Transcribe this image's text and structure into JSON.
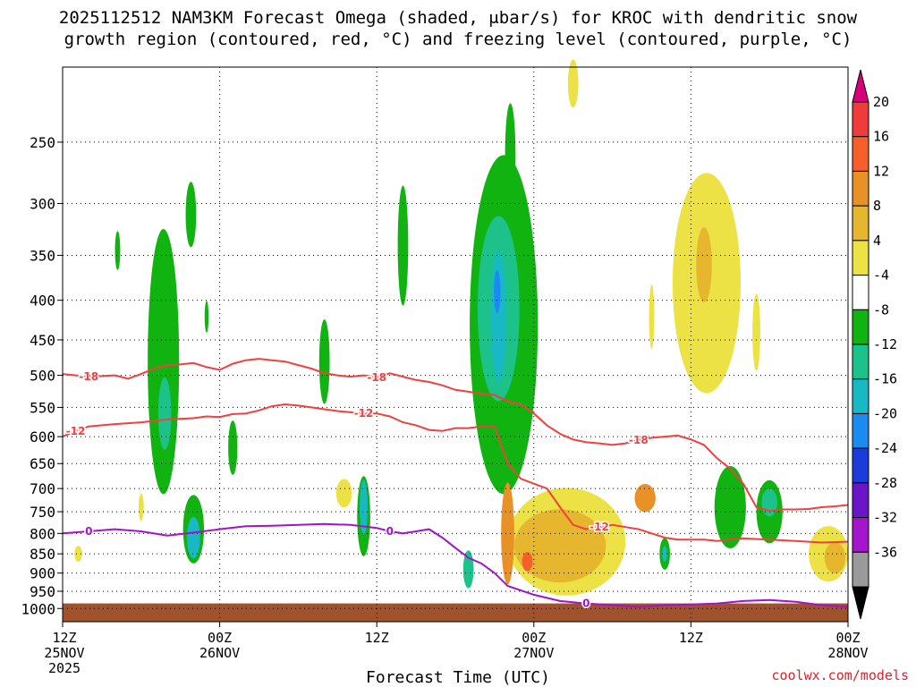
{
  "header": {
    "title_line1": "2025112512 NAM3KM Forecast Omega (shaded, μbar/s) for KROC with dendritic snow",
    "title_line2": "growth region (contoured, red, °C) and freezing level (contoured, purple, °C)"
  },
  "footer": {
    "x_axis_title": "Forecast Time (UTC)",
    "credit": "coolwx.com/models"
  },
  "chart_data": {
    "type": "heatmap",
    "title": "2025112512 NAM3KM Forecast Omega (shaded, μbar/s) for KROC with dendritic snow growth region (contoured, red, °C) and freezing level (contoured, purple, °C)",
    "xlabel": "Forecast Time (UTC)",
    "ylabel": "",
    "x_ticks": [
      {
        "hour": 0,
        "lines": [
          "12Z",
          "25NOV",
          "2025"
        ]
      },
      {
        "hour": 12,
        "lines": [
          "00Z",
          "26NOV"
        ]
      },
      {
        "hour": 24,
        "lines": [
          "12Z"
        ]
      },
      {
        "hour": 36,
        "lines": [
          "00Z",
          "27NOV"
        ]
      },
      {
        "hour": 48,
        "lines": [
          "12Z"
        ]
      },
      {
        "hour": 60,
        "lines": [
          "00Z",
          "28NOV"
        ]
      }
    ],
    "xlim": [
      0,
      60
    ],
    "y_ticks": [
      250,
      300,
      350,
      400,
      450,
      500,
      550,
      600,
      650,
      700,
      750,
      800,
      850,
      900,
      950,
      1000
    ],
    "ylim_hPa": [
      200,
      1040
    ],
    "y_scale": "log-pressure",
    "grid": "dotted",
    "colorbar": {
      "labels": [
        "20",
        "16",
        "12",
        "8",
        "4",
        "-4",
        "-8",
        "-12",
        "-16",
        "-20",
        "-24",
        "-28",
        "-32",
        "-36"
      ],
      "colors": [
        "#d6007b",
        "#ee3b3b",
        "#f5602a",
        "#e79126",
        "#e6b62f",
        "#ece245",
        "#ffffff",
        "#11b311",
        "#1cc28a",
        "#18b8c4",
        "#1b8bf0",
        "#1b3cdb",
        "#6a16c8",
        "#a515cc",
        "#9a9a9a",
        "#000000"
      ]
    },
    "contours": [
      {
        "label": "-18",
        "color": "#f04040",
        "points": [
          [
            0,
            498
          ],
          [
            2,
            502
          ],
          [
            4,
            500
          ],
          [
            5,
            505
          ],
          [
            6,
            498
          ],
          [
            7,
            490
          ],
          [
            8,
            485
          ],
          [
            9,
            484
          ],
          [
            10,
            482
          ],
          [
            11,
            488
          ],
          [
            12,
            492
          ],
          [
            13,
            483
          ],
          [
            14,
            478
          ],
          [
            15,
            476
          ],
          [
            16,
            478
          ],
          [
            17,
            480
          ],
          [
            18,
            485
          ],
          [
            19,
            490
          ],
          [
            20,
            497
          ],
          [
            21,
            500
          ],
          [
            22,
            502
          ],
          [
            23,
            500
          ],
          [
            24,
            503
          ],
          [
            25,
            497
          ],
          [
            26,
            502
          ],
          [
            27,
            507
          ],
          [
            28,
            510
          ],
          [
            29,
            515
          ],
          [
            30,
            522
          ],
          [
            31,
            525
          ],
          [
            32,
            528
          ],
          [
            33,
            530
          ],
          [
            34,
            540
          ],
          [
            35,
            545
          ],
          [
            36,
            560
          ],
          [
            37,
            580
          ],
          [
            38,
            595
          ],
          [
            39,
            605
          ],
          [
            40,
            610
          ],
          [
            41,
            612
          ],
          [
            42,
            615
          ],
          [
            43,
            612
          ],
          [
            44,
            606
          ],
          [
            45,
            602
          ],
          [
            46,
            600
          ],
          [
            47,
            598
          ],
          [
            48,
            605
          ],
          [
            49,
            615
          ],
          [
            50,
            640
          ],
          [
            51,
            660
          ],
          [
            52,
            690
          ],
          [
            53,
            740
          ],
          [
            54,
            748
          ],
          [
            55,
            745
          ],
          [
            56,
            745
          ],
          [
            57,
            744
          ],
          [
            58,
            740
          ],
          [
            59,
            738
          ],
          [
            60,
            735
          ]
        ]
      },
      {
        "label": "-12",
        "color": "#f04040",
        "points": [
          [
            0,
            600
          ],
          [
            1,
            590
          ],
          [
            2,
            582
          ],
          [
            4,
            578
          ],
          [
            6,
            575
          ],
          [
            8,
            570
          ],
          [
            10,
            568
          ],
          [
            11,
            565
          ],
          [
            12,
            566
          ],
          [
            13,
            561
          ],
          [
            14,
            560
          ],
          [
            15,
            555
          ],
          [
            16,
            548
          ],
          [
            17,
            545
          ],
          [
            18,
            547
          ],
          [
            19,
            550
          ],
          [
            20,
            553
          ],
          [
            21,
            556
          ],
          [
            22,
            558
          ],
          [
            23,
            560
          ],
          [
            24,
            560
          ],
          [
            25,
            565
          ],
          [
            26,
            575
          ],
          [
            27,
            580
          ],
          [
            28,
            588
          ],
          [
            29,
            590
          ],
          [
            30,
            585
          ],
          [
            31,
            585
          ],
          [
            32,
            582
          ],
          [
            33,
            582
          ],
          [
            34,
            650
          ],
          [
            35,
            680
          ],
          [
            36,
            690
          ],
          [
            37,
            700
          ],
          [
            38,
            740
          ],
          [
            39,
            780
          ],
          [
            40,
            790
          ],
          [
            41,
            785
          ],
          [
            42,
            780
          ],
          [
            43,
            785
          ],
          [
            44,
            790
          ],
          [
            45,
            800
          ],
          [
            46,
            810
          ],
          [
            47,
            815
          ],
          [
            48,
            815
          ],
          [
            49,
            815
          ],
          [
            50,
            818
          ],
          [
            52,
            812
          ],
          [
            54,
            815
          ],
          [
            56,
            818
          ],
          [
            58,
            822
          ],
          [
            60,
            820
          ]
        ]
      },
      {
        "label": "0",
        "color": "#a214c8",
        "points": [
          [
            0,
            800
          ],
          [
            2,
            795
          ],
          [
            4,
            790
          ],
          [
            6,
            795
          ],
          [
            8,
            805
          ],
          [
            10,
            798
          ],
          [
            12,
            790
          ],
          [
            14,
            783
          ],
          [
            16,
            782
          ],
          [
            18,
            780
          ],
          [
            20,
            778
          ],
          [
            22,
            780
          ],
          [
            24,
            787
          ],
          [
            25,
            795
          ],
          [
            26,
            800
          ],
          [
            27,
            795
          ],
          [
            28,
            790
          ],
          [
            29,
            810
          ],
          [
            30,
            835
          ],
          [
            31,
            860
          ],
          [
            32,
            875
          ],
          [
            33,
            900
          ],
          [
            34,
            935
          ],
          [
            36,
            960
          ],
          [
            38,
            978
          ],
          [
            40,
            985
          ],
          [
            42,
            990
          ],
          [
            44,
            995
          ],
          [
            46,
            990
          ],
          [
            48,
            988
          ],
          [
            50,
            985
          ],
          [
            52,
            978
          ],
          [
            54,
            975
          ],
          [
            56,
            980
          ],
          [
            58,
            990
          ],
          [
            60,
            995
          ]
        ]
      }
    ]
  },
  "colors": {
    "green": "#11b311",
    "teal": "#1cc28a",
    "cyan": "#18b8c4",
    "blue": "#1b8bf0",
    "darkblue": "#1b3cdb",
    "yellow": "#ece245",
    "gold": "#e6b62f",
    "orange": "#e79126",
    "darkorange": "#f5602a",
    "ground": "#a0522d",
    "dsg": "#f04040",
    "freeze": "#a214c8"
  }
}
